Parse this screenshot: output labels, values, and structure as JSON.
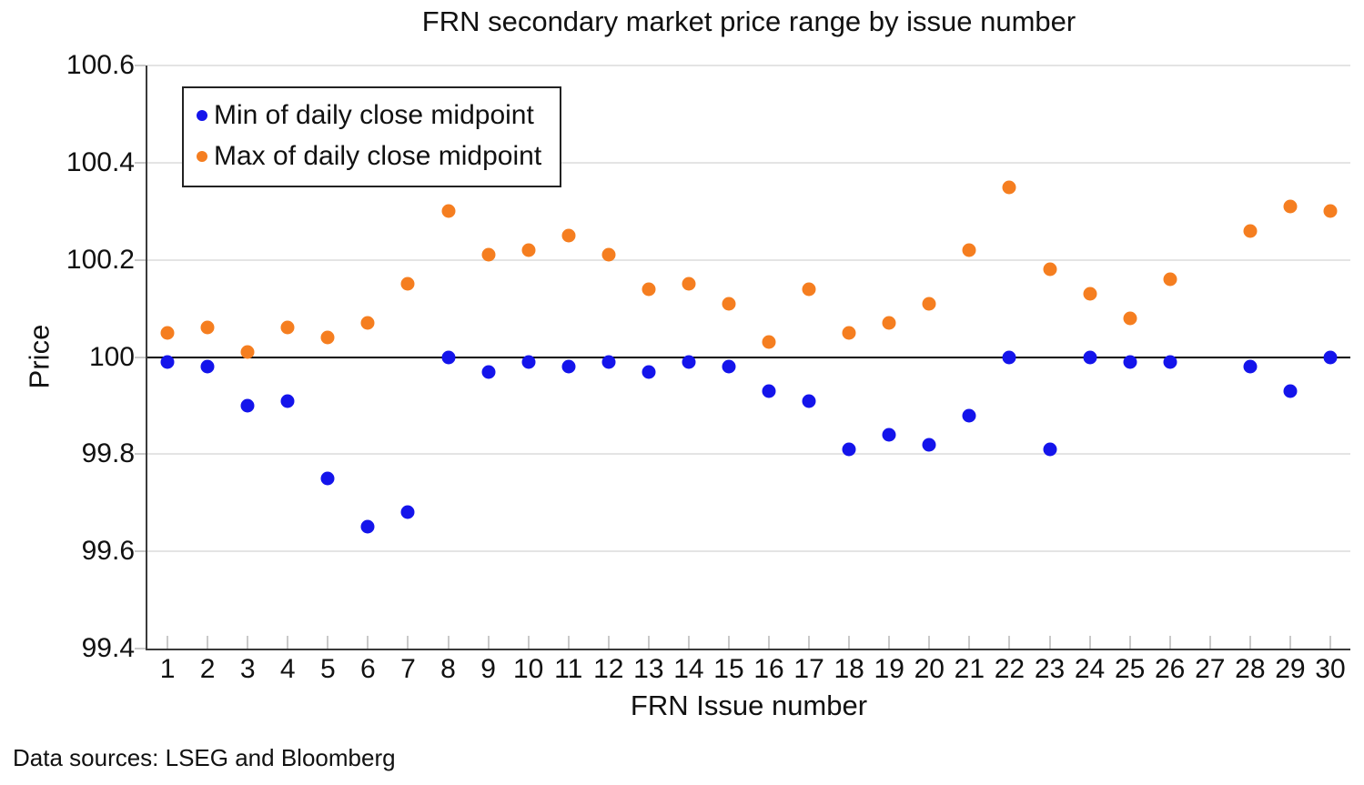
{
  "title": "FRN secondary market price range by issue number",
  "footer_note": "Data sources: LSEG and Bloomberg",
  "colors": {
    "min_series": "#1414EB",
    "max_series": "#F57E20",
    "grid": "#E4E4E4",
    "axis": "#3A3A3A",
    "baseline": "#000000"
  },
  "chart_data": {
    "type": "scatter",
    "title": "FRN secondary market price range by issue number",
    "xlabel": "FRN Issue number",
    "ylabel": "Price",
    "ylim": [
      99.4,
      100.6
    ],
    "xlim_categories": [
      1,
      30
    ],
    "grid": "horizontal",
    "legend_position": "top-left",
    "reference_line_y": 100,
    "ytick_labels": [
      "99.4",
      "99.6",
      "99.8",
      "100",
      "100.2",
      "100.4",
      "100.6"
    ],
    "yticks": [
      99.4,
      99.6,
      99.8,
      100,
      100.2,
      100.4,
      100.6
    ],
    "x": [
      1,
      2,
      3,
      4,
      5,
      6,
      7,
      8,
      9,
      10,
      11,
      12,
      13,
      14,
      15,
      16,
      17,
      18,
      19,
      20,
      21,
      22,
      23,
      24,
      25,
      26,
      27,
      28,
      29,
      30
    ],
    "series": [
      {
        "name": "Min of daily close midpoint",
        "key": "min",
        "color": "#1414EB",
        "values": [
          99.99,
          99.98,
          99.9,
          99.91,
          99.75,
          99.65,
          99.68,
          100.0,
          99.97,
          99.99,
          99.98,
          99.99,
          99.97,
          99.99,
          99.98,
          99.93,
          99.91,
          99.81,
          99.84,
          99.82,
          99.88,
          100.0,
          99.81,
          100.0,
          99.99,
          99.99,
          null,
          99.98,
          99.93,
          100.0
        ]
      },
      {
        "name": "Max of daily close midpoint",
        "key": "max",
        "color": "#F57E20",
        "values": [
          100.05,
          100.06,
          100.01,
          100.06,
          100.04,
          100.07,
          100.15,
          100.3,
          100.21,
          100.22,
          100.25,
          100.21,
          100.14,
          100.15,
          100.11,
          100.03,
          100.14,
          100.05,
          100.07,
          100.11,
          100.22,
          100.35,
          100.18,
          100.13,
          100.08,
          100.16,
          null,
          100.26,
          100.31,
          100.3
        ]
      }
    ]
  }
}
